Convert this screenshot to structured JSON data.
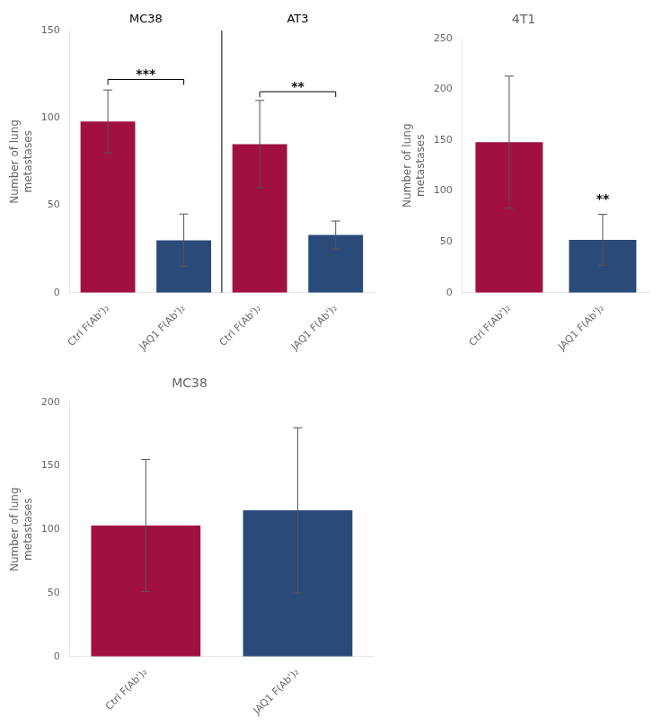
{
  "chart_data": [
    {
      "type": "bar",
      "categories": [
        "Ctrl F(Ab')₂",
        "JAQ1 F(Ab')₂",
        "Ctrl F(Ab')₂",
        "JAQ1 F(Ab')₂"
      ],
      "values": [
        98,
        30,
        85,
        33
      ],
      "errors": [
        18,
        15,
        25,
        8
      ],
      "colors": [
        "#a01040",
        "#2a4a7a",
        "#a01040",
        "#2a4a7a"
      ],
      "ylabel": "Number of lung\nmetastases",
      "ylim": [
        0,
        150
      ],
      "yticks": [
        0,
        50,
        100,
        150
      ],
      "grid": false,
      "annotations": [
        {
          "type": "text",
          "text": "MC38",
          "x": [
            0,
            1
          ],
          "y": 152
        },
        {
          "type": "text",
          "text": "AT3",
          "x": [
            2,
            3
          ],
          "y": 152
        },
        {
          "type": "bracket",
          "text": "***",
          "x": [
            0,
            1
          ],
          "y": 122
        },
        {
          "type": "bracket",
          "text": "**",
          "x": [
            2,
            3
          ],
          "y": 115
        }
      ]
    },
    {
      "type": "bar",
      "title": "4T1",
      "categories": [
        "Ctrl F(Ab')₂",
        "JAQ1 F(Ab')₂"
      ],
      "values": [
        148,
        52
      ],
      "errors": [
        65,
        25
      ],
      "colors": [
        "#a01040",
        "#2a4a7a"
      ],
      "ylabel": "Number of lung\nmetastases",
      "ylim": [
        0,
        250
      ],
      "yticks": [
        0,
        50,
        100,
        150,
        200,
        250
      ],
      "grid": false,
      "annotations": [
        {
          "type": "text",
          "text": "**",
          "x": [
            1
          ],
          "y": 83
        }
      ]
    },
    {
      "type": "bar",
      "title": "MC38",
      "categories": [
        "Ctrl F(Ab')₂",
        "JAQ1 F(Ab')₂"
      ],
      "values": [
        103,
        115
      ],
      "errors": [
        52,
        65
      ],
      "colors": [
        "#a01040",
        "#2a4a7a"
      ],
      "ylabel": "Number of lung\nmetastases",
      "ylim": [
        0,
        200
      ],
      "yticks": [
        0,
        50,
        100,
        150,
        200
      ],
      "grid": false
    }
  ]
}
